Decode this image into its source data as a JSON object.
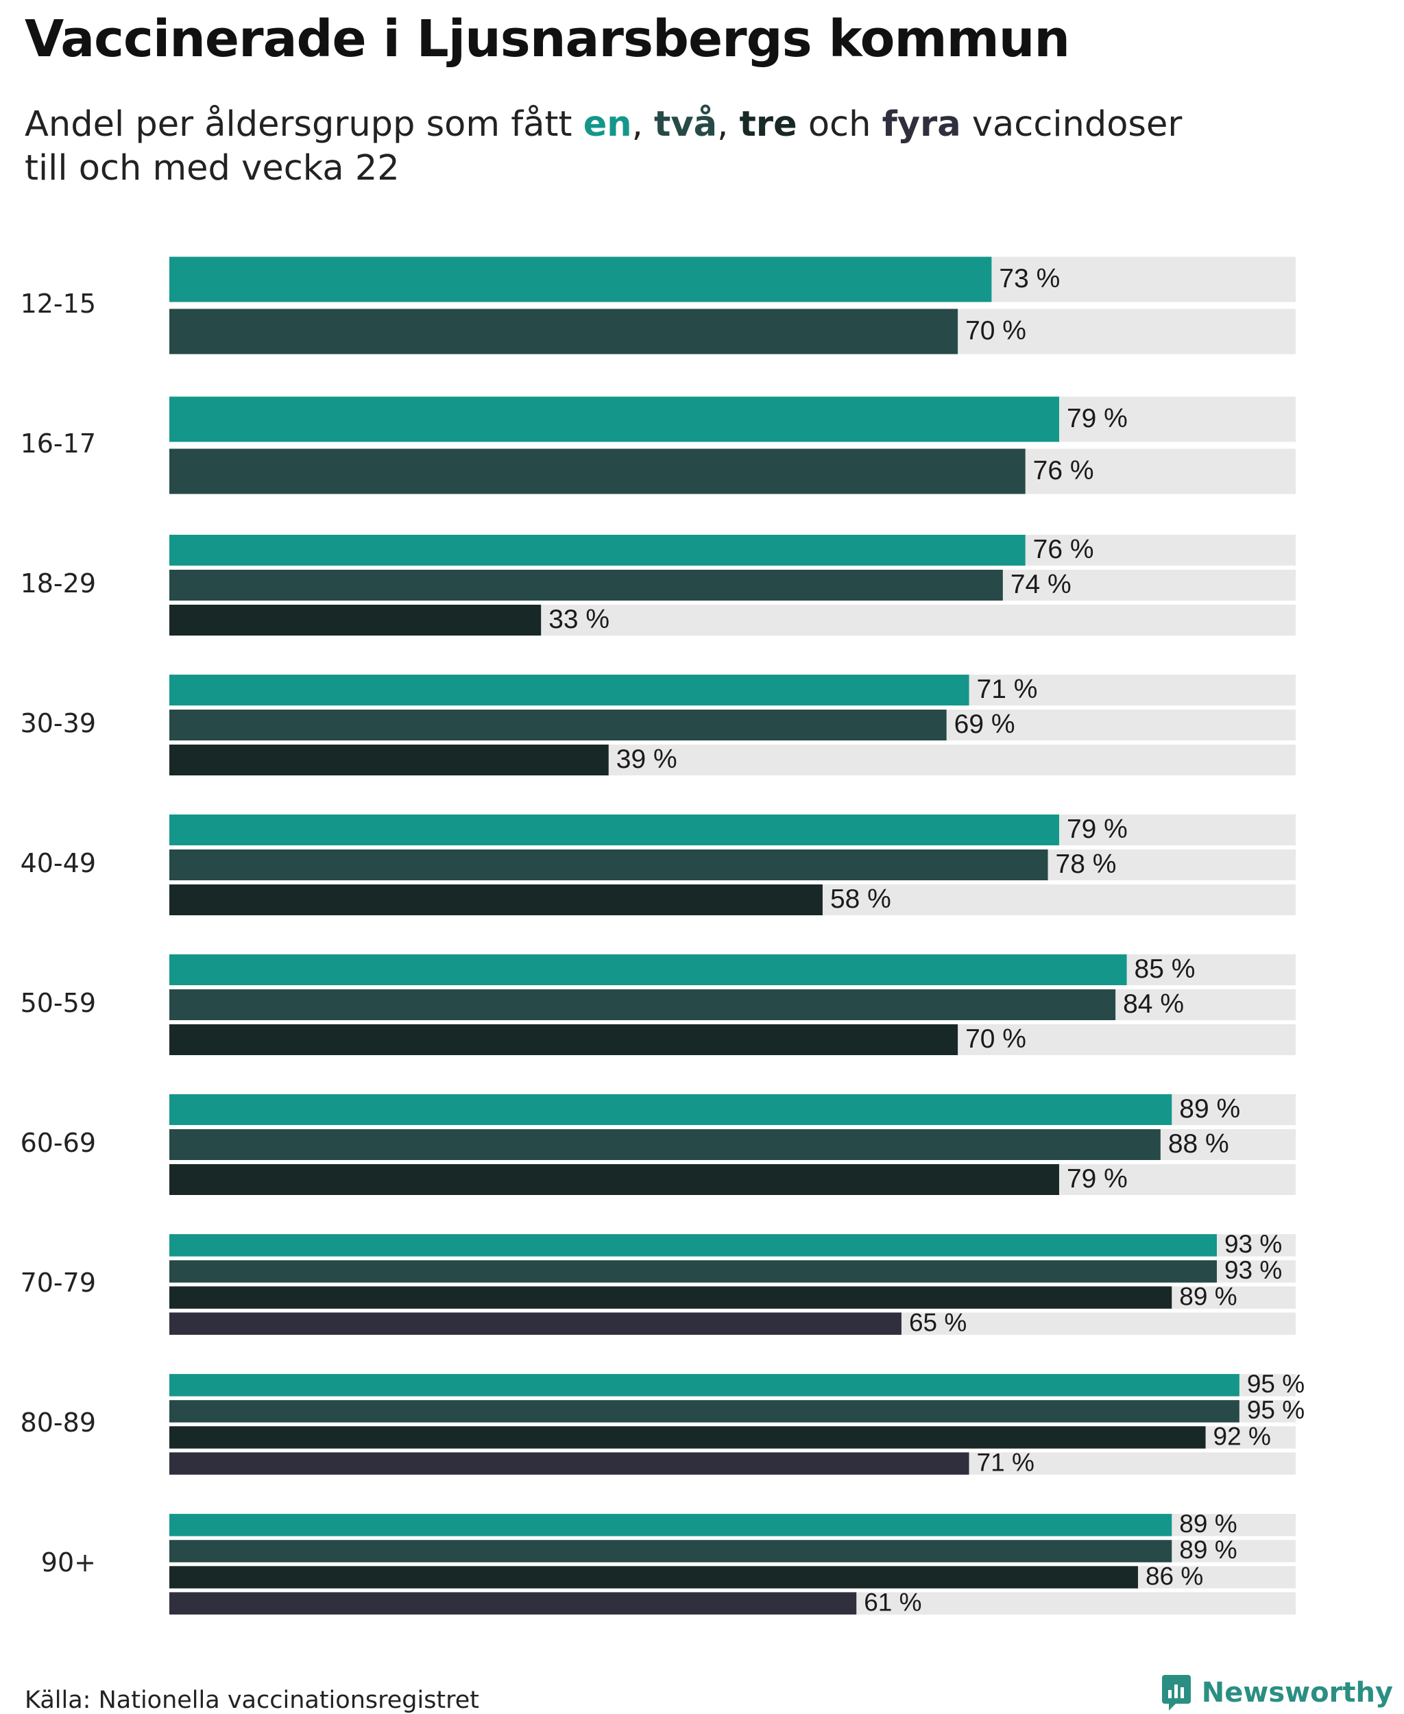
{
  "title": "Vaccinerade i Ljusnarsbergs kommun",
  "subtitle": {
    "prefix": "Andel per åldersgrupp som fått ",
    "dose1": "en",
    "sep1": ", ",
    "dose2": "två",
    "sep2": ", ",
    "dose3": "tre",
    "mid": " och ",
    "dose4": "fyra",
    "suffix": " vaccindoser",
    "line2": "till och med vecka 22"
  },
  "source": "Källa: Nationella vaccinationsregistret",
  "brand": {
    "name": "Newsworthy",
    "icon": "newsworthy-logo-icon"
  },
  "colors": {
    "dose1": "#14978a",
    "dose2": "#274a48",
    "dose3": "#182826",
    "dose4": "#2f2f3e",
    "track": "#e8e8e8",
    "brand": "#2a8f82"
  },
  "chart_data": {
    "type": "bar",
    "orientation": "horizontal",
    "value_suffix": " %",
    "xlim": [
      0,
      100
    ],
    "grid": false,
    "series_names": [
      "en",
      "två",
      "tre",
      "fyra"
    ],
    "categories": [
      "12-15",
      "16-17",
      "18-29",
      "30-39",
      "40-49",
      "50-59",
      "60-69",
      "70-79",
      "80-89",
      "90+"
    ],
    "groups": [
      {
        "label": "12-15",
        "values": [
          73,
          70
        ]
      },
      {
        "label": "16-17",
        "values": [
          79,
          76
        ]
      },
      {
        "label": "18-29",
        "values": [
          76,
          74,
          33
        ]
      },
      {
        "label": "30-39",
        "values": [
          71,
          69,
          39
        ]
      },
      {
        "label": "40-49",
        "values": [
          79,
          78,
          58
        ]
      },
      {
        "label": "50-59",
        "values": [
          85,
          84,
          70
        ]
      },
      {
        "label": "60-69",
        "values": [
          89,
          88,
          79
        ]
      },
      {
        "label": "70-79",
        "values": [
          93,
          93,
          89,
          65
        ]
      },
      {
        "label": "80-89",
        "values": [
          95,
          95,
          92,
          71
        ]
      },
      {
        "label": "90+",
        "values": [
          89,
          89,
          86,
          61
        ]
      }
    ]
  }
}
